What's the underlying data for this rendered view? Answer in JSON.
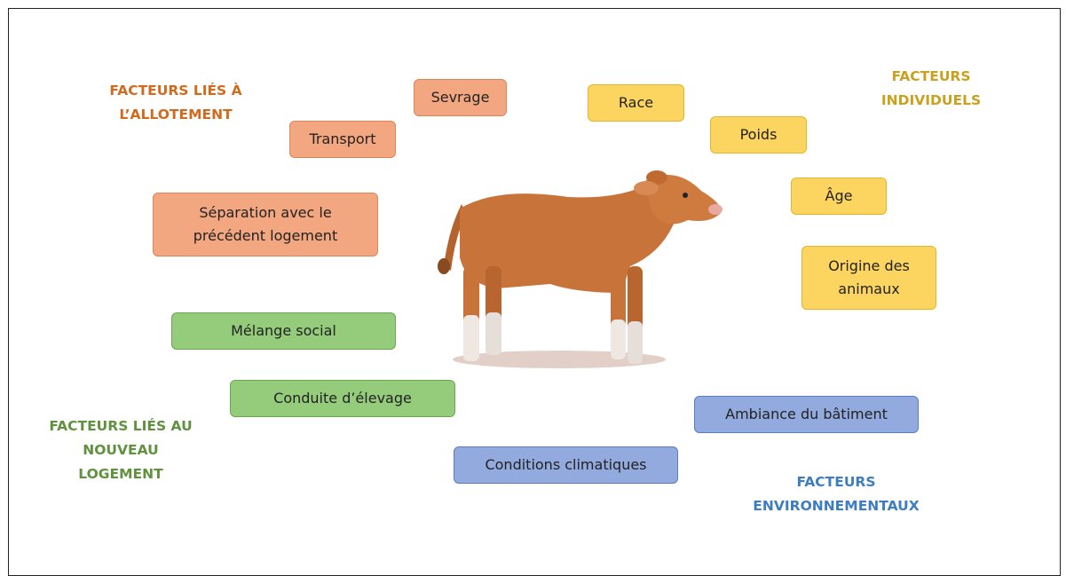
{
  "groups": [
    {
      "title": [
        "FACTEURS LIÉS À",
        "L’ALLOTEMENT"
      ],
      "items": [
        [
          "Sevrage"
        ],
        [
          "Transport"
        ],
        [
          "Séparation avec le",
          "précédent logement"
        ]
      ]
    },
    {
      "title": [
        "FACTEURS",
        "INDIVIDUELS"
      ],
      "items": [
        [
          "Race"
        ],
        [
          "Poids"
        ],
        [
          "Âge"
        ],
        [
          "Origine des",
          "animaux"
        ]
      ]
    },
    {
      "title": [
        "FACTEURS LIÉS AU",
        "NOUVEAU",
        "LOGEMENT"
      ],
      "items": [
        [
          "Mélange social"
        ],
        [
          "Conduite d’élevage"
        ]
      ]
    },
    {
      "title": [
        "FACTEURS",
        "ENVIRONNEMENTAUX"
      ],
      "items": [
        [
          "Ambiance du bâtiment"
        ],
        [
          "Conditions climatiques"
        ]
      ]
    }
  ]
}
